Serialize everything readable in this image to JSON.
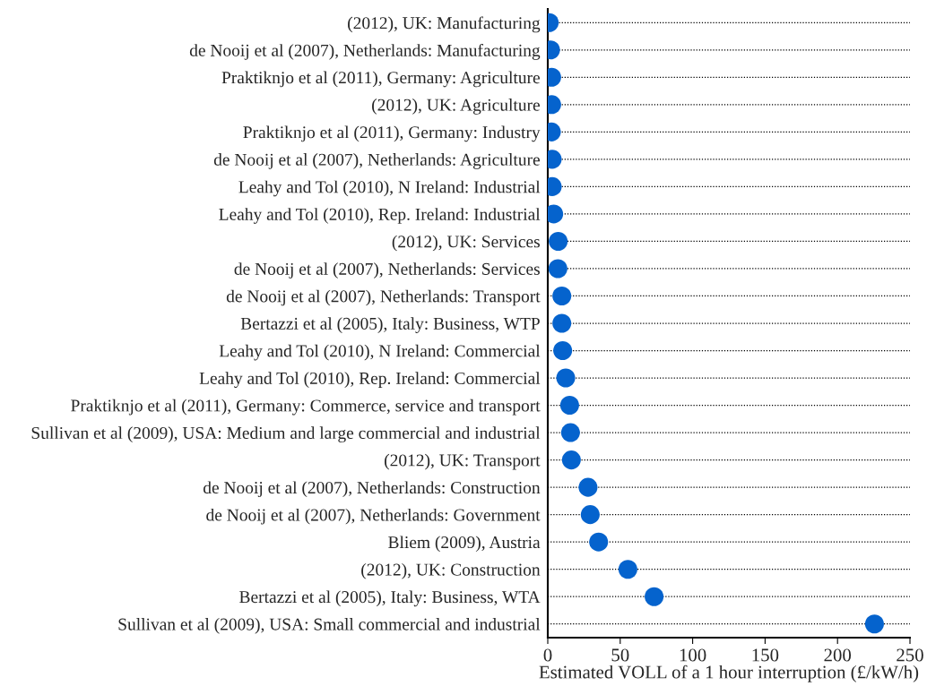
{
  "chart_data": {
    "type": "scatter",
    "orientation": "horizontal",
    "xlabel": "Estimated VOLL of a 1 hour interruption (£/kW/h)",
    "categories": [
      "(2012), UK: Manufacturing",
      "de Nooij et al (2007), Netherlands: Manufacturing",
      "Praktiknjo et al (2011), Germany: Agriculture",
      "(2012), UK: Agriculture",
      "Praktiknjo et al (2011), Germany: Industry",
      "de Nooij et al (2007), Netherlands: Agriculture",
      "Leahy and Tol (2010), N Ireland: Industrial",
      "Leahy and Tol (2010), Rep. Ireland: Industrial",
      "(2012), UK: Services",
      "de Nooij et al (2007), Netherlands: Services",
      "de Nooij et al (2007), Netherlands: Transport",
      "Bertazzi et al (2005), Italy: Business, WTP",
      "Leahy and Tol (2010), N Ireland: Commercial",
      "Leahy and Tol (2010), Rep. Ireland: Commercial",
      "Praktiknjo et al (2011), Germany: Commerce, service and transport",
      "Sullivan et al (2009), USA: Medium and large commercial and industrial",
      "(2012), UK: Transport",
      "de Nooij et al (2007), Netherlands: Construction",
      "de Nooij et al (2007), Netherlands: Government",
      "Bliem (2009), Austria",
      "(2012), UK: Construction",
      "Bertazzi et al (2005), Italy: Business, WTA",
      "Sullivan et al (2009), USA: Small commercial and industrial"
    ],
    "series": [
      {
        "color": "#0563cd",
        "values": [
          1.0,
          1.9,
          2.7,
          2.7,
          2.5,
          3.1,
          3.1,
          4.1,
          7.2,
          7.0,
          9.7,
          9.7,
          10.3,
          12.4,
          15.1,
          15.7,
          16.3,
          27.8,
          29.3,
          35.1,
          55.3,
          73.4,
          225.5
        ]
      }
    ],
    "xlim": [
      0,
      250
    ],
    "xticks": [
      0,
      50,
      100,
      150,
      200,
      250
    ],
    "grid": "y",
    "marker": "circle"
  }
}
